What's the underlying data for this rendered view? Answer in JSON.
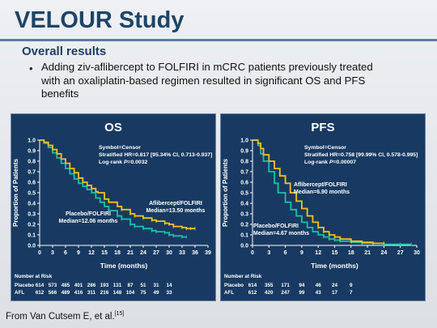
{
  "slide": {
    "title": "VELOUR Study",
    "subtitle": "Overall results",
    "bullet_marker": "•",
    "bullet": "Adding ziv-aflibercept to FOLFIRI in mCRC patients previously treated with an oxaliplatin-based regimen resulted in significant OS and PFS benefits",
    "footer": "From Van Cutsem E, et al.",
    "footer_ref": "[15]"
  },
  "colors": {
    "panel_bg": "#183a62",
    "aflibercept": "#f2c21a",
    "placebo": "#18c2a4",
    "text": "#ffffff"
  },
  "chart_data": [
    {
      "type": "line",
      "title": "OS",
      "xlabel": "Time (months)",
      "ylabel": "Proportion of Patients",
      "xlim": [
        0,
        39
      ],
      "ylim": [
        0,
        1.0
      ],
      "x_ticks": [
        0,
        3,
        6,
        9,
        12,
        15,
        18,
        21,
        24,
        27,
        30,
        33,
        36,
        39
      ],
      "y_ticks": [
        0.0,
        0.1,
        0.2,
        0.3,
        0.4,
        0.5,
        0.6,
        0.7,
        0.8,
        0.9,
        1.0
      ],
      "stats": [
        "Symbol=Censor",
        "Stratified HR=0.817 [95.34% CI, 0.713-0.937]",
        "Log-rank P=0.0032"
      ],
      "series": [
        {
          "name": "Aflibercept/FOLFIRI",
          "median_label": "Median=13.50 months",
          "color": "#f2c21a",
          "x": [
            0,
            1,
            2,
            3,
            4,
            5,
            6,
            7,
            8,
            9,
            10,
            11,
            12,
            13,
            13.5,
            15,
            16,
            18,
            19,
            21,
            22,
            24,
            26,
            27,
            29,
            30,
            31,
            33,
            34,
            35,
            36
          ],
          "y": [
            1.0,
            0.98,
            0.95,
            0.91,
            0.87,
            0.82,
            0.78,
            0.73,
            0.69,
            0.64,
            0.6,
            0.57,
            0.54,
            0.51,
            0.5,
            0.44,
            0.41,
            0.37,
            0.34,
            0.3,
            0.28,
            0.26,
            0.24,
            0.23,
            0.21,
            0.2,
            0.18,
            0.17,
            0.16,
            0.16,
            0.16
          ]
        },
        {
          "name": "Placebo/FOLFIRI",
          "median_label": "Median=12.06 months",
          "color": "#18c2a4",
          "x": [
            0,
            1,
            2,
            3,
            4,
            5,
            6,
            7,
            8,
            9,
            10,
            11,
            12.06,
            13,
            14,
            15,
            16,
            18,
            19,
            21,
            22,
            24,
            26,
            27,
            29,
            30,
            31,
            33,
            34
          ],
          "y": [
            1.0,
            0.97,
            0.93,
            0.88,
            0.83,
            0.78,
            0.73,
            0.68,
            0.63,
            0.59,
            0.56,
            0.53,
            0.5,
            0.45,
            0.41,
            0.37,
            0.33,
            0.28,
            0.25,
            0.2,
            0.18,
            0.16,
            0.14,
            0.13,
            0.12,
            0.1,
            0.09,
            0.08,
            0.08
          ]
        }
      ],
      "risk_header": "Number at Risk",
      "risk_rows": [
        {
          "label": "Placebo",
          "values": [
            "614",
            "573",
            "485",
            "401",
            "286",
            "193",
            "131",
            "87",
            "51",
            "31",
            "14"
          ]
        },
        {
          "label": "AFL",
          "values": [
            "612",
            "566",
            "489",
            "416",
            "311",
            "216",
            "148",
            "104",
            "75",
            "49",
            "33"
          ]
        }
      ]
    },
    {
      "type": "line",
      "title": "PFS",
      "xlabel": "Time (months)",
      "ylabel": "Proportion of Patients",
      "xlim": [
        0,
        30
      ],
      "ylim": [
        0,
        1.0
      ],
      "x_ticks": [
        0,
        3,
        6,
        9,
        12,
        15,
        18,
        21,
        24,
        27,
        30
      ],
      "y_ticks": [
        0.0,
        0.1,
        0.2,
        0.3,
        0.4,
        0.5,
        0.6,
        0.7,
        0.8,
        0.9,
        1.0
      ],
      "stats": [
        "Symbol=Censor",
        "Stratified HR=0.758 [99.99% CI, 0.578-0.995]",
        "Log-rank P=0.00007"
      ],
      "series": [
        {
          "name": "Aflibercept/FOLFIRI",
          "median_label": "Median=6.90 months",
          "color": "#f2c21a",
          "x": [
            0,
            1,
            1.5,
            2,
            3,
            4,
            5,
            6,
            6.9,
            8,
            9,
            10,
            11,
            12,
            13,
            14,
            15,
            16,
            18,
            20,
            22,
            24
          ],
          "y": [
            1.0,
            0.97,
            0.92,
            0.86,
            0.8,
            0.73,
            0.66,
            0.59,
            0.5,
            0.42,
            0.35,
            0.28,
            0.22,
            0.17,
            0.13,
            0.1,
            0.08,
            0.06,
            0.04,
            0.03,
            0.02,
            0.02
          ]
        },
        {
          "name": "Placebo/FOLFIRI",
          "median_label": "Median=4.67 months",
          "color": "#18c2a4",
          "x": [
            0,
            1,
            1.5,
            2,
            3,
            4,
            4.67,
            6,
            7,
            8,
            9,
            10,
            11,
            12,
            13,
            14,
            15,
            16,
            18,
            20,
            22,
            24,
            27,
            29
          ],
          "y": [
            1.0,
            0.95,
            0.87,
            0.8,
            0.7,
            0.59,
            0.5,
            0.41,
            0.34,
            0.28,
            0.22,
            0.17,
            0.13,
            0.1,
            0.08,
            0.06,
            0.05,
            0.04,
            0.03,
            0.02,
            0.02,
            0.01,
            0.01,
            0.01
          ]
        }
      ],
      "risk_header": "Number at Risk",
      "risk_rows": [
        {
          "label": "Placebo",
          "values": [
            "614",
            "355",
            "171",
            "94",
            "46",
            "24",
            "9"
          ]
        },
        {
          "label": "AFL",
          "values": [
            "612",
            "420",
            "247",
            "99",
            "43",
            "17",
            "7"
          ]
        }
      ]
    }
  ]
}
